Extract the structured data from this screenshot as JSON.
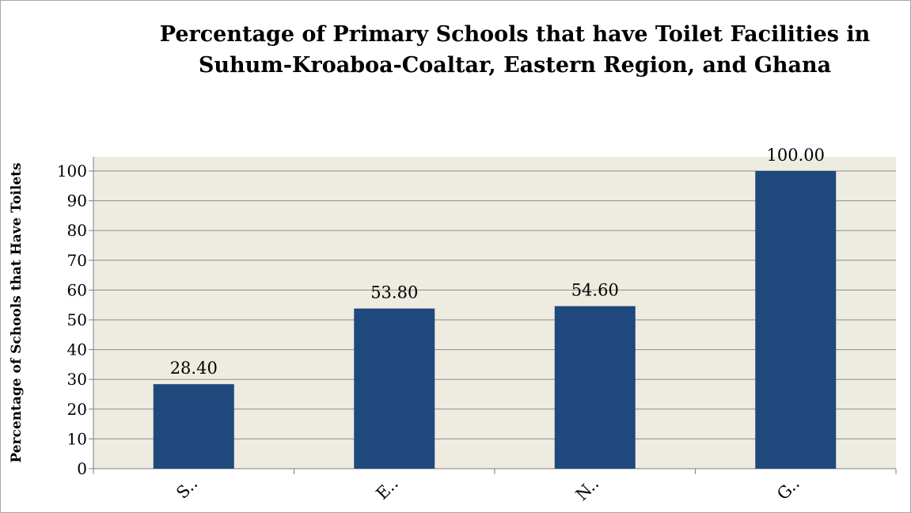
{
  "chart_data": {
    "type": "bar",
    "title_lines": [
      "Percentage of Primary Schools that have Toilet Facilities in",
      "Suhum-Kroaboa-Coaltar, Eastern Region, and Ghana"
    ],
    "xlabel": "",
    "ylabel": "Percentage of Schools that Have Toilets",
    "categories": [
      "S..",
      "E..",
      "N..",
      "G.."
    ],
    "values": [
      28.4,
      53.8,
      54.6,
      100.0
    ],
    "data_labels": [
      "28.40",
      "53.80",
      "54.60",
      "100.00"
    ],
    "ylim": [
      0,
      100
    ],
    "yticks": [
      0,
      10,
      20,
      30,
      40,
      50,
      60,
      70,
      80,
      90,
      100
    ],
    "grid": true,
    "legend": "none",
    "colors": {
      "bar": "#1f497d",
      "plot_background": "#eeece1",
      "gridline": "#8c8c8c",
      "axis": "#7f7f7f"
    }
  }
}
